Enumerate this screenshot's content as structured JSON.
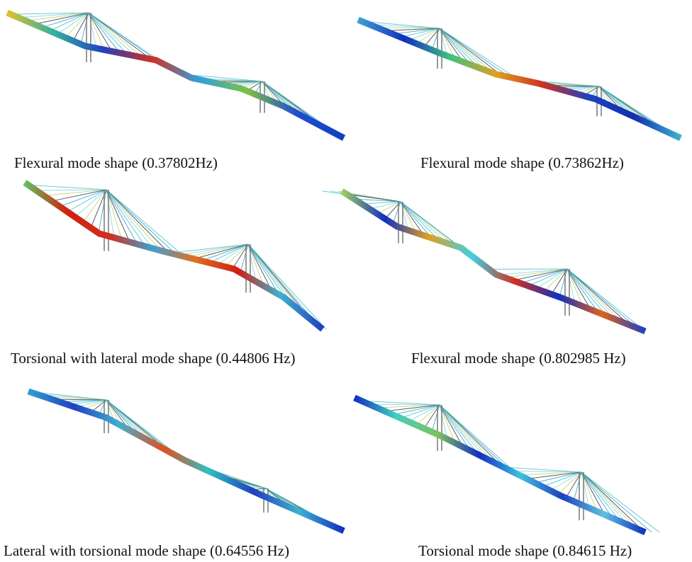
{
  "figure": {
    "panels": [
      {
        "caption": "Flexural mode shape (0.37802Hz)"
      },
      {
        "caption": "Flexural mode shape (0.73862Hz)"
      },
      {
        "caption": "Torsional with lateral mode shape (0.44806 Hz)"
      },
      {
        "caption": "Flexural mode shape (0.802985 Hz)"
      },
      {
        "caption": "Lateral with torsional mode shape (0.64556 Hz)"
      },
      {
        "caption": "Torsional mode shape (0.84615 Hz)"
      }
    ]
  }
}
